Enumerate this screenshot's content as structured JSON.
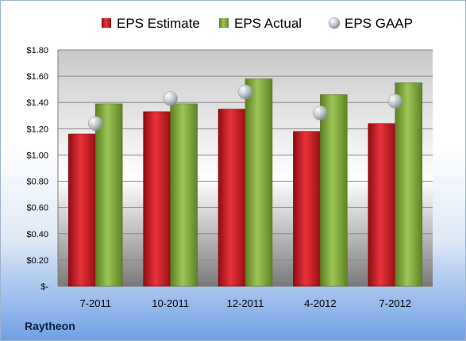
{
  "company": "Raytheon",
  "chart_data": {
    "type": "bar",
    "categories": [
      "7-2011",
      "10-2011",
      "12-2011",
      "4-2012",
      "7-2012"
    ],
    "series": [
      {
        "name": "EPS Estimate",
        "kind": "bar",
        "color": "#c0161d",
        "values": [
          1.16,
          1.33,
          1.35,
          1.18,
          1.24
        ]
      },
      {
        "name": "EPS Actual",
        "kind": "bar",
        "color": "#7fa63a",
        "values": [
          1.39,
          1.39,
          1.58,
          1.46,
          1.55
        ]
      },
      {
        "name": "EPS GAAP",
        "kind": "marker",
        "color": "#b9c2cc",
        "values": [
          1.24,
          1.43,
          1.48,
          1.32,
          1.41
        ]
      }
    ],
    "ylim": [
      0,
      1.8
    ],
    "yticks": [
      0,
      0.2,
      0.4,
      0.6,
      0.8,
      1.0,
      1.2,
      1.4,
      1.6,
      1.8
    ],
    "ytick_labels": [
      "$-",
      "$0.20",
      "$0.40",
      "$0.60",
      "$0.80",
      "$1.00",
      "$1.20",
      "$1.40",
      "$1.60",
      "$1.80"
    ],
    "grid": true,
    "legend_position": "top"
  }
}
